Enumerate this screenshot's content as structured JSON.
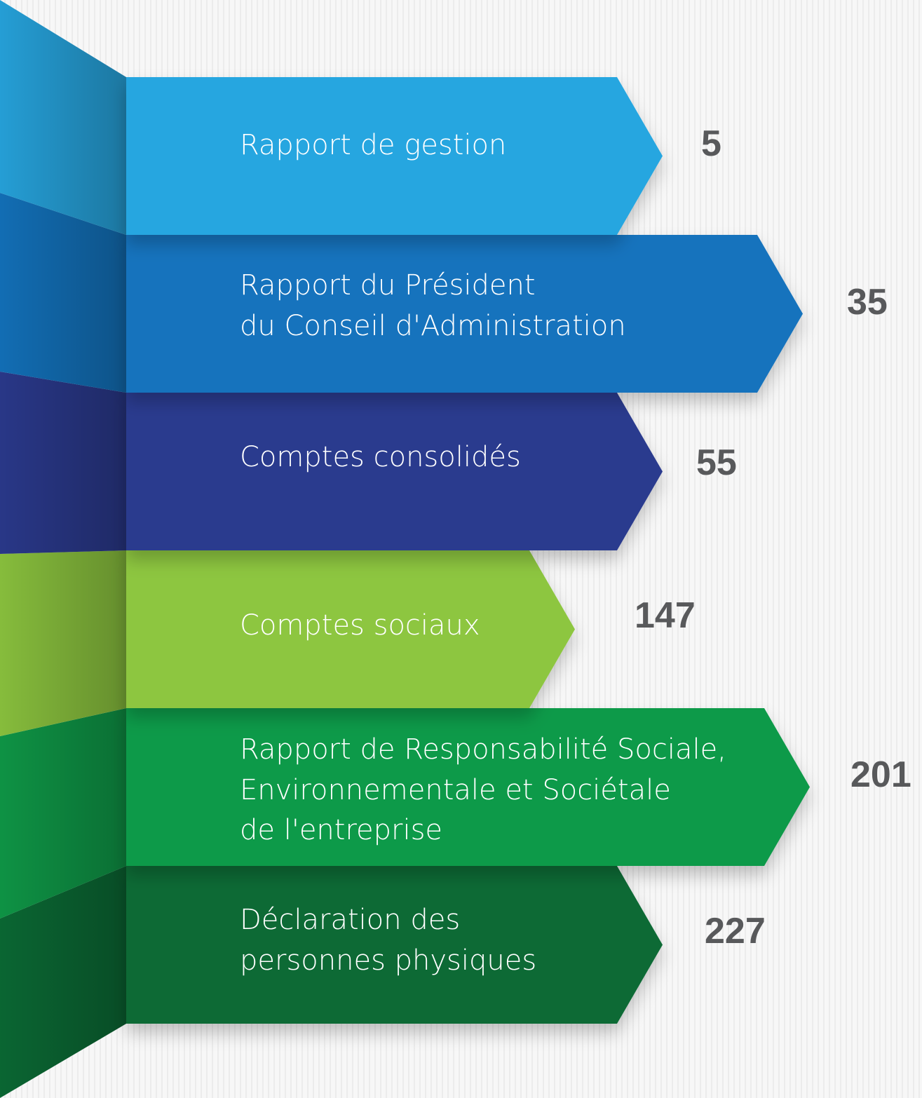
{
  "toc": {
    "items": [
      {
        "lines": [
          "Rapport de gestion"
        ],
        "page": 5
      },
      {
        "lines": [
          "Rapport du Président",
          "du Conseil d'Administration"
        ],
        "page": 35
      },
      {
        "lines": [
          "Comptes consolidés"
        ],
        "page": 55
      },
      {
        "lines": [
          "Comptes sociaux"
        ],
        "page": 147
      },
      {
        "lines": [
          "Rapport de Responsabilité Sociale,",
          "Environnementale et Sociétale",
          "de l'entreprise"
        ],
        "page": 201
      },
      {
        "lines": [
          "Déclaration des",
          "personnes physiques"
        ],
        "page": 227
      }
    ]
  }
}
